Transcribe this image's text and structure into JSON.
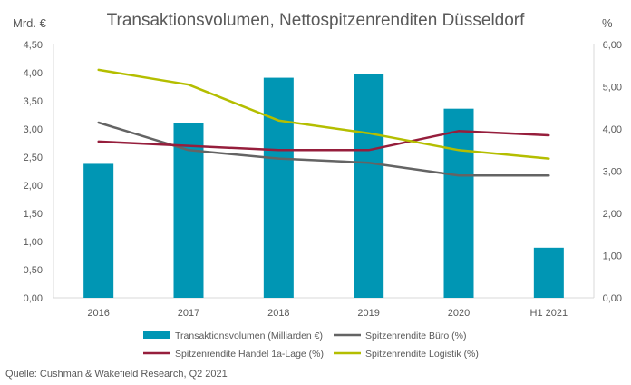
{
  "chart_data": {
    "type": "bar",
    "title": "Transaktionsvolumen, Nettospitzenrenditen Düsseldorf",
    "y_left_label": "Mrd. €",
    "y_right_label": "%",
    "categories": [
      "2016",
      "2017",
      "2018",
      "2019",
      "2020",
      "H1 2021"
    ],
    "y_left_ticks": [
      "0,00",
      "0,50",
      "1,00",
      "1,50",
      "2,00",
      "2,50",
      "3,00",
      "3,50",
      "4,00",
      "4,50"
    ],
    "y_right_ticks": [
      "0,00",
      "1,00",
      "2,00",
      "3,00",
      "4,00",
      "5,00",
      "6,00"
    ],
    "ylim_left": [
      0,
      4.5
    ],
    "ylim_right": [
      0,
      6
    ],
    "grid": false,
    "legend_position": "bottom",
    "bar_series": {
      "name": "Transaktionsvolumen (Milliarden €)",
      "color": "#0096b4",
      "values": [
        2.38,
        3.11,
        3.91,
        3.97,
        3.36,
        0.89
      ]
    },
    "line_series": [
      {
        "name": "Spitzenrendite Büro (%)",
        "color": "#646464",
        "values": [
          4.15,
          3.5,
          3.3,
          3.2,
          2.9,
          2.9
        ]
      },
      {
        "name": "Spitzenrendite Handel 1a-Lage (%)",
        "color": "#961e3c",
        "values": [
          3.7,
          3.6,
          3.5,
          3.5,
          3.95,
          3.85
        ]
      },
      {
        "name": "Spitzenrendite Logistik  (%)",
        "color": "#b4be00",
        "values": [
          5.4,
          5.05,
          4.2,
          3.9,
          3.5,
          3.3
        ]
      }
    ],
    "source": "Quelle: Cushman & Wakefield Research, Q2 2021"
  }
}
